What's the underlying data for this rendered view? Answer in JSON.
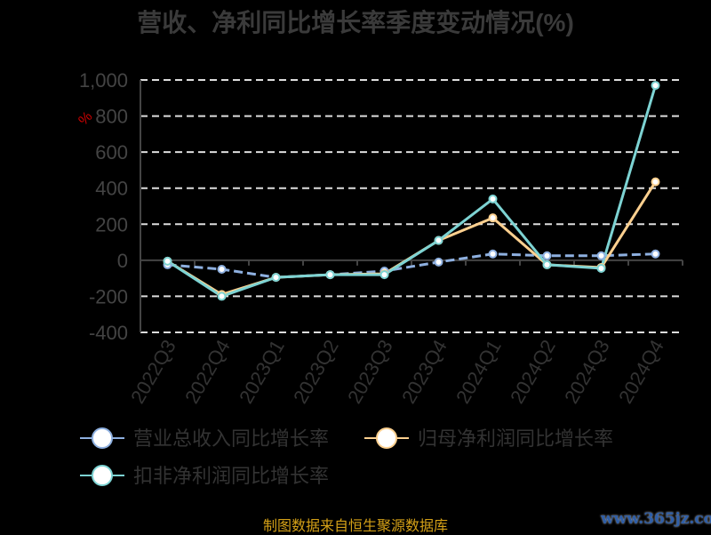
{
  "chart_data": {
    "type": "line",
    "title": "营收、净利同比增长率季度变动情况(%)",
    "ylabel": "%",
    "ylim": [
      -400,
      1000
    ],
    "yticks": [
      -400,
      -200,
      0,
      200,
      400,
      600,
      800,
      1000
    ],
    "ytick_labels": [
      "-400",
      "-200",
      "0",
      "200",
      "400",
      "600",
      "800",
      "1,000"
    ],
    "grid": true,
    "legend_position": "bottom",
    "categories": [
      "2022Q3",
      "2022Q4",
      "2023Q1",
      "2023Q2",
      "2023Q3",
      "2023Q4",
      "2024Q1",
      "2024Q2",
      "2024Q3",
      "2024Q4"
    ],
    "series": [
      {
        "name": "营业总收入同比增长率",
        "color": "#8eb0e0",
        "dashed": true,
        "values": [
          -25,
          -50,
          -95,
          -80,
          -60,
          -10,
          35,
          25,
          25,
          35
        ]
      },
      {
        "name": "归母净利润同比增长率",
        "color": "#fdd08f",
        "dashed": false,
        "values": [
          -5,
          -190,
          -95,
          -80,
          -75,
          110,
          235,
          -25,
          -40,
          435
        ]
      },
      {
        "name": "扣非净利润同比增长率",
        "color": "#7dd3d3",
        "dashed": false,
        "values": [
          -5,
          -200,
          -95,
          -80,
          -80,
          110,
          340,
          -25,
          -45,
          970
        ]
      }
    ]
  },
  "source": "制图数据来自恒生聚源数据库",
  "watermark": "www.365jz.com"
}
